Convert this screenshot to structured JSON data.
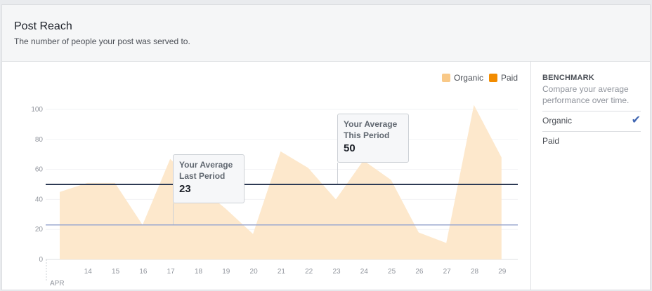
{
  "header": {
    "title": "Post Reach",
    "subtitle": "The number of people your post was served to."
  },
  "legend": {
    "items": [
      {
        "label": "Organic",
        "color": "#f9c988"
      },
      {
        "label": "Paid",
        "color": "#f28c00"
      }
    ]
  },
  "benchmark": {
    "title": "BENCHMARK",
    "description": "Compare your average performance over time.",
    "options": [
      {
        "label": "Organic",
        "selected": true
      },
      {
        "label": "Paid",
        "selected": false
      }
    ]
  },
  "callouts": {
    "last_period": {
      "label_line1": "Your Average",
      "label_line2": "Last Period",
      "value": "23"
    },
    "this_period": {
      "label_line1": "Your Average",
      "label_line2": "This Period",
      "value": "50"
    }
  },
  "chart_data": {
    "type": "area",
    "x_month_label": "APR",
    "x": [
      "13",
      "14",
      "15",
      "16",
      "17",
      "18",
      "19",
      "20",
      "21",
      "22",
      "23",
      "24",
      "25",
      "26",
      "27",
      "28",
      "29"
    ],
    "x_tick_labels": [
      "14",
      "15",
      "16",
      "17",
      "18",
      "19",
      "20",
      "21",
      "22",
      "23",
      "24",
      "25",
      "26",
      "27",
      "28",
      "29"
    ],
    "series": [
      {
        "name": "Organic",
        "color": "#fde8cc",
        "values": [
          45,
          51,
          51,
          23,
          67,
          49,
          34,
          17,
          72,
          61,
          40,
          66,
          53,
          18,
          11,
          103,
          68
        ]
      }
    ],
    "reference_lines": [
      {
        "label": "Your Average Last Period",
        "value": 23,
        "color": "#9aa7cf"
      },
      {
        "label": "Your Average This Period",
        "value": 50,
        "color": "#2d3a54"
      }
    ],
    "yticks": [
      0,
      20,
      40,
      60,
      80,
      100
    ],
    "ylim": [
      0,
      105
    ],
    "grid": true
  }
}
